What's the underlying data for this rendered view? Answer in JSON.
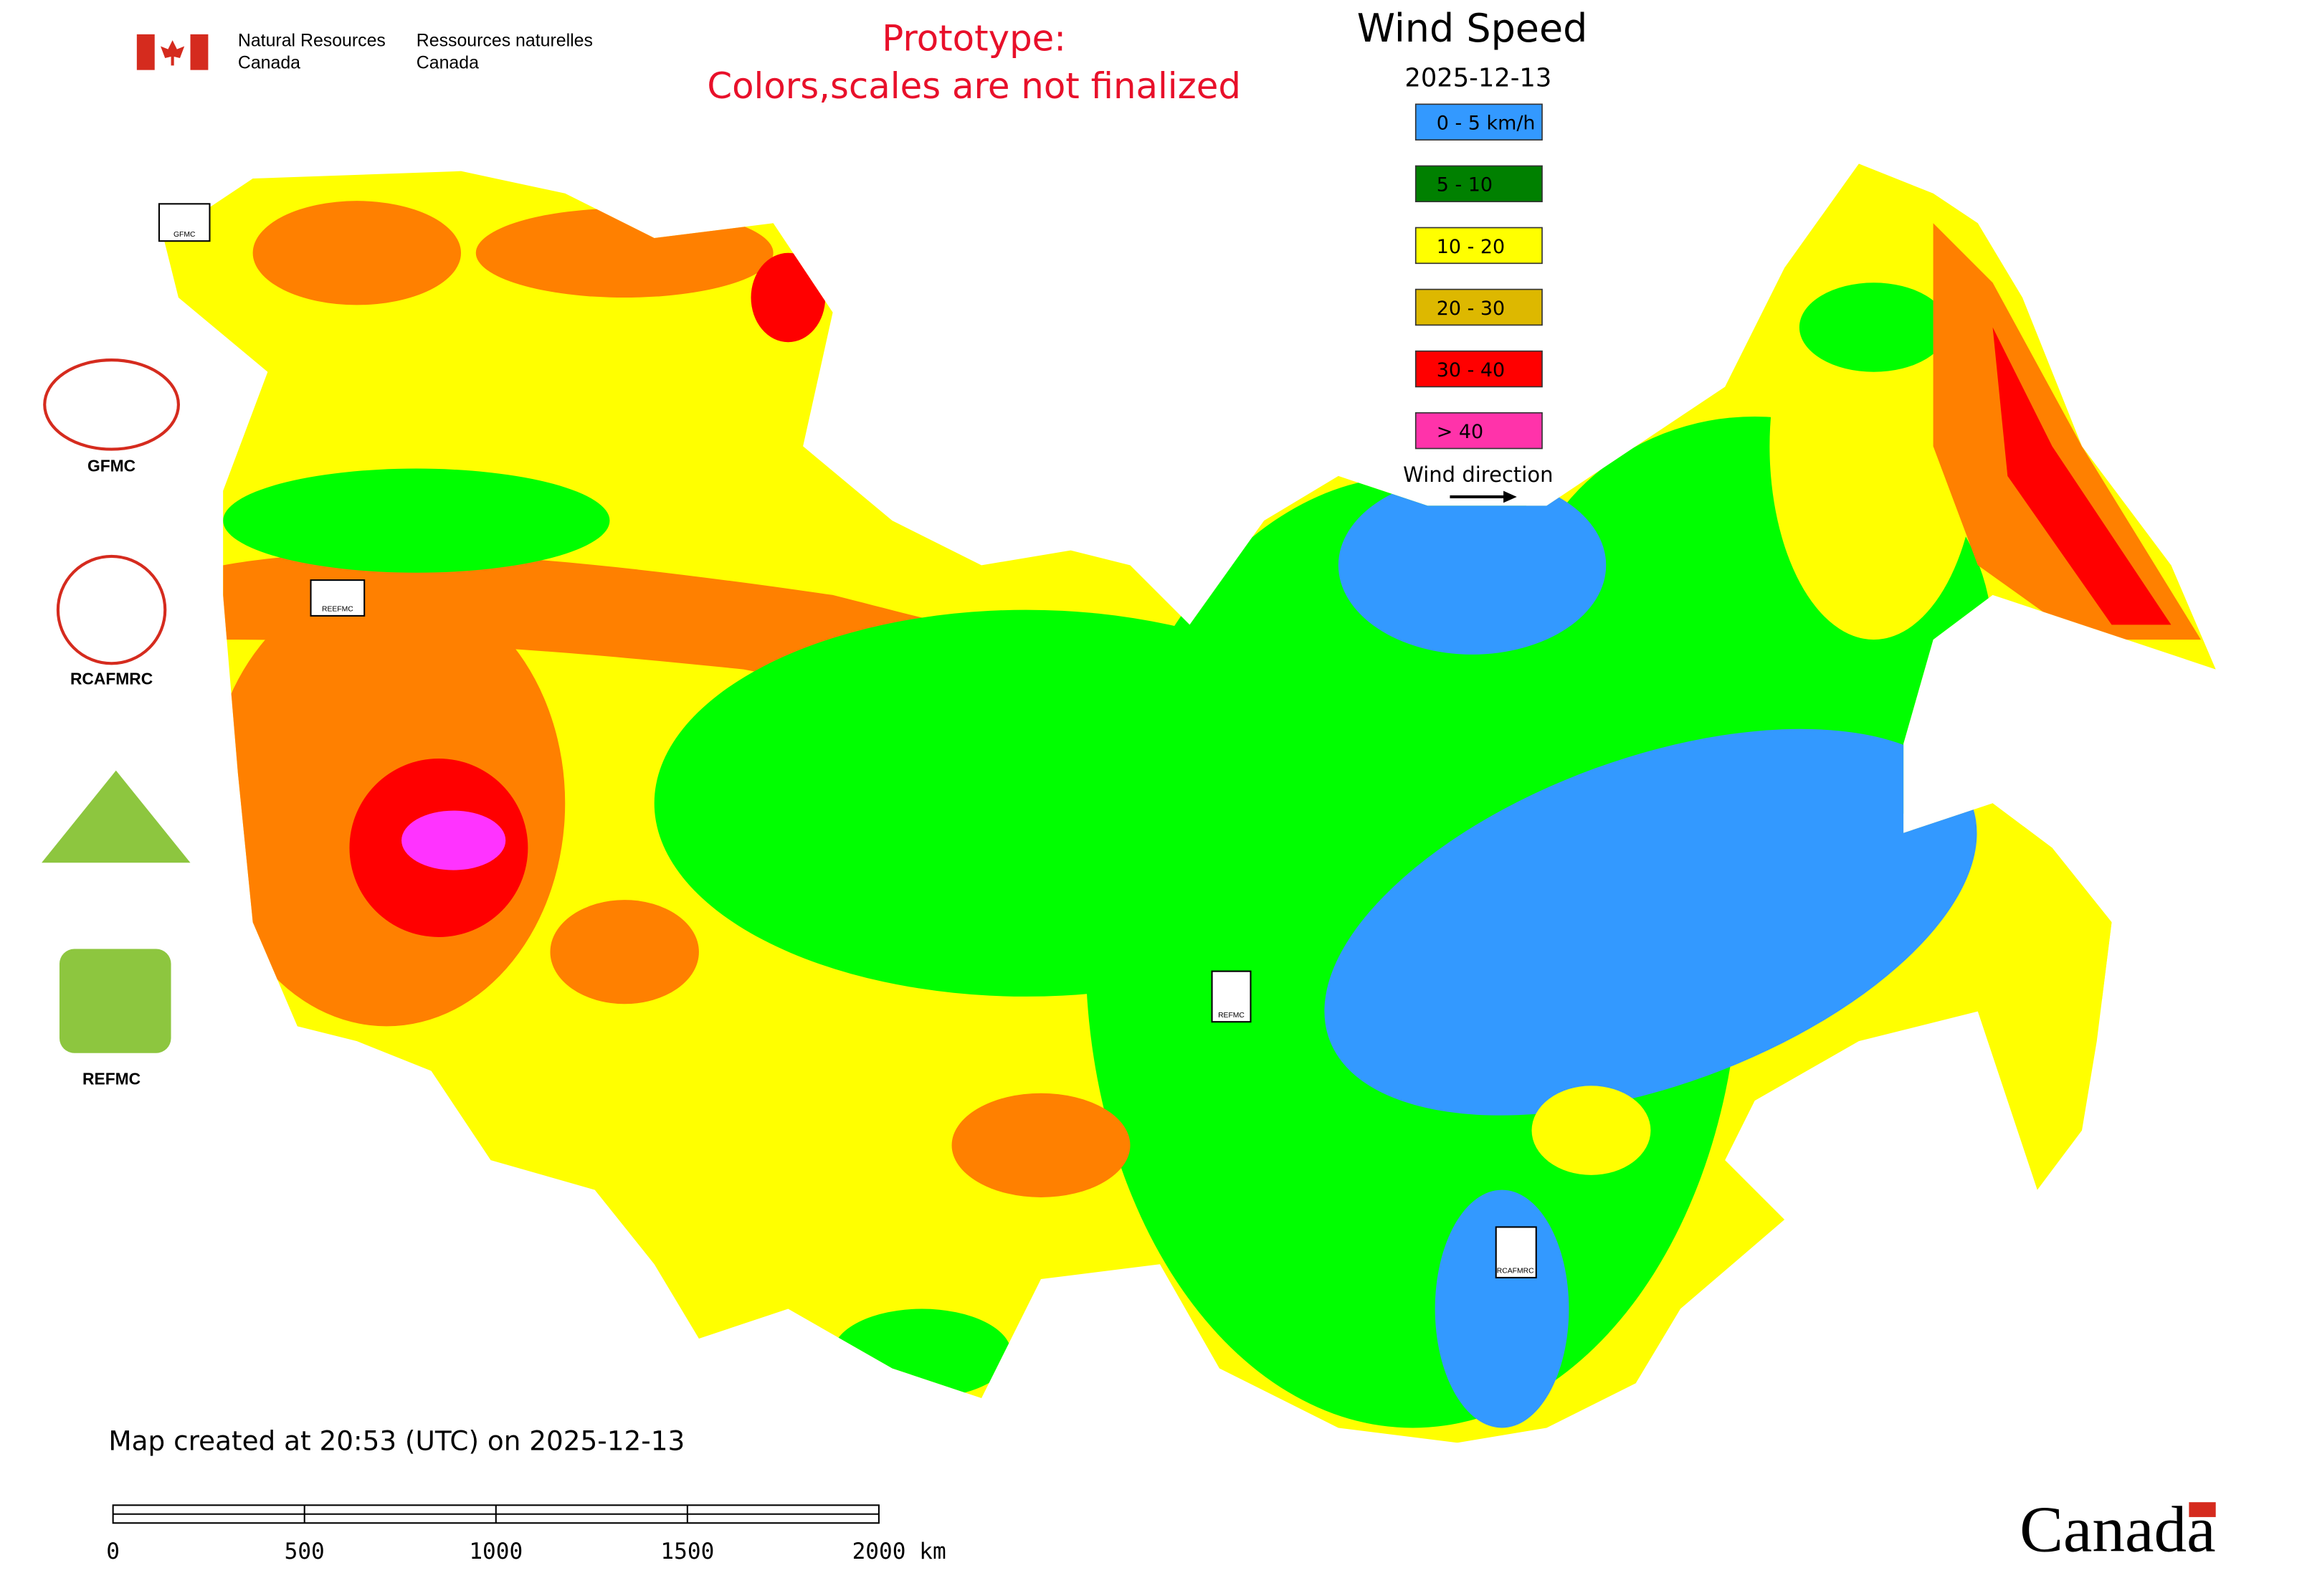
{
  "header": {
    "agency_en": [
      "Natural Resources",
      "Canada"
    ],
    "agency_fr": [
      "Ressources naturelles",
      "Canada"
    ],
    "notice": [
      "Prototype:",
      "Colors,scales are not finalized"
    ]
  },
  "legend": {
    "title": "Wind Speed",
    "date": "2025-12-13",
    "items": [
      {
        "label": "0 - 5 km/h",
        "color": "#3399ff"
      },
      {
        "label": "5 - 10",
        "color": "#008000"
      },
      {
        "label": "10 - 20",
        "color": "#ffff00"
      },
      {
        "label": "20 - 30",
        "color": "#ddb800"
      },
      {
        "label": "30 - 40",
        "color": "#ff0000"
      },
      {
        "label": "> 40",
        "color": "#ff33aa"
      }
    ],
    "direction": "Wind direction"
  },
  "logos": [
    "GFMC",
    "RCAFMRC",
    "REFMC"
  ],
  "map_markers": [
    "GFMC",
    "REEFMC",
    "REFMC",
    "RCAFMRC"
  ],
  "footer": {
    "created": "Map created at 20:53 (UTC) on 2025-12-13",
    "scale": [
      "0",
      "500",
      "1000",
      "1500",
      "2000 km"
    ],
    "wordmark": "Canada"
  }
}
